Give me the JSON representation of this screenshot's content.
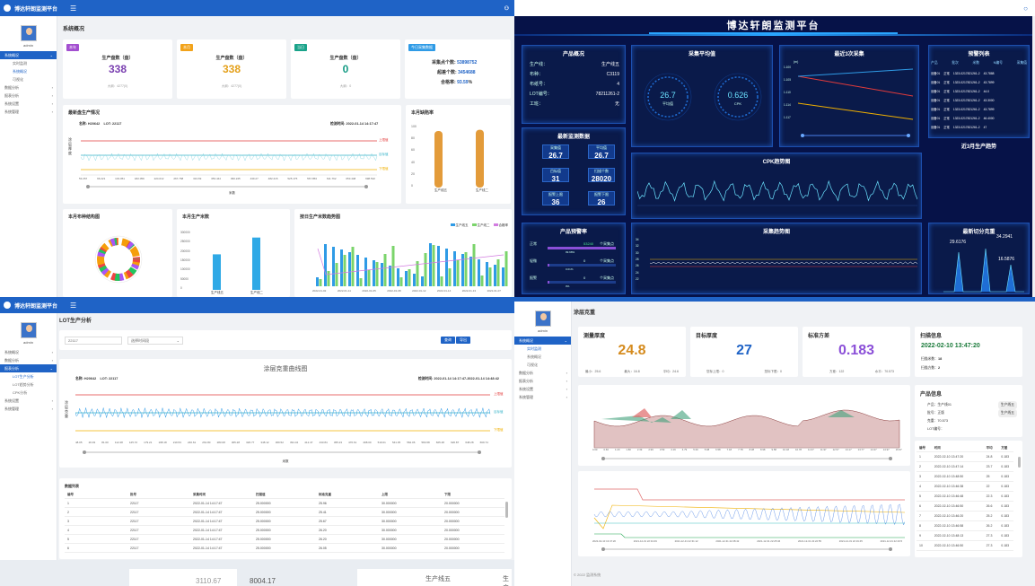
{
  "app_title": "博达轩朗监测平台",
  "q1": {
    "user": "admin",
    "menu": [
      {
        "label": "系统概况",
        "active": true
      },
      {
        "label": "数据分析"
      },
      {
        "label": "报表分析"
      },
      {
        "label": "系统设置"
      },
      {
        "label": "系统管理"
      }
    ],
    "submenu": [
      {
        "label": "实时监测"
      },
      {
        "label": "系统概况",
        "active": true
      },
      {
        "label": "可视化"
      }
    ],
    "page_title": "系统概况",
    "stats": [
      {
        "tag": "本年",
        "tag_color": "#a34fd0",
        "label": "生产盘数（盘）",
        "value": "338",
        "value_color": "#7a3fb0",
        "sub": "大纲：4277(0)"
      },
      {
        "tag": "本月",
        "tag_color": "#f2a31b",
        "label": "生产盘数（盘）",
        "value": "338",
        "value_color": "#e4a01a",
        "sub": "大纲：4277(0)"
      },
      {
        "tag": "当日",
        "tag_color": "#1aa38a",
        "label": "生产盘数（盘）",
        "value": "0",
        "value_color": "#159b84",
        "sub": "大纲：0"
      }
    ],
    "today": {
      "tag": "今日采集数据",
      "l1": "采集点个数:",
      "v1": "53898752",
      "l2": "超差个数:",
      "v2": "3454688",
      "l3": "合格率:",
      "v3": "93.59",
      "unit": "%"
    },
    "latest": {
      "title": "最新盘生产情况",
      "name_label": "名称:",
      "name": "H20642",
      "lot_label": "LOT:",
      "lot": "22117",
      "time_label": "检测时间:",
      "time": "2022-01-14 14:17:47",
      "ylabel": "涂层厚度",
      "xlabel": "米数",
      "upper": "上限值",
      "target": "目标值",
      "lower": "下限值",
      "xticks": [
        "53.267",
        "66.221",
        "133.051",
        "182.059",
        "224.012",
        "267.768",
        "313.69",
        "353.444",
        "396.245",
        "439.27",
        "482.215",
        "525.175",
        "567.853",
        "611.762",
        "653.448",
        "698.532"
      ]
    },
    "rate": {
      "title": "本月缺陷率",
      "categories": [
        "生产线五",
        "生产线二"
      ],
      "values": [
        90,
        92
      ],
      "yticks": [
        "100",
        "80",
        "60",
        "40",
        "20",
        "0"
      ]
    },
    "pie": {
      "title": "本月布种结构图"
    },
    "month": {
      "title": "本月生产米数",
      "categories": [
        "生产线五",
        "生产线二"
      ],
      "values": [
        180000,
        265000
      ],
      "yticks": [
        "300000",
        "250000",
        "200000",
        "150000",
        "100000",
        "50000",
        "0"
      ]
    },
    "trend": {
      "title": "按日生产米数趋势图",
      "legend": [
        "生产线五",
        "生产线二",
        "合格率"
      ],
      "xticks": [
        "2022-01-02",
        "2022-01-11",
        "2022-01-05",
        "2022-01-08",
        "2022-01-12",
        "2022-01-14",
        "2022-01-13",
        "2022-01-07"
      ]
    }
  },
  "q2": {
    "title": "博达轩朗监测平台",
    "product": {
      "title": "产品概况",
      "rows": [
        [
          "生产线：",
          "生产线五"
        ],
        [
          "布种：",
          "C3119"
        ],
        [
          "布纸号：",
          "4"
        ],
        [
          "LOT编号：",
          "78211261-2"
        ],
        [
          "工班：",
          "无"
        ]
      ]
    },
    "avg": {
      "title": "采集平均值",
      "g1": "26.7",
      "g1l": "平均值",
      "g2": "0.626",
      "g2l": "CPK"
    },
    "last3": {
      "title": "最近3次采集",
      "unit": "(m)",
      "yticks": [
        "1.100",
        "1.105",
        "1.110",
        "1.114",
        "1.117"
      ]
    },
    "forecast": {
      "title": "预警列表",
      "headers": [
        "产品",
        "批次",
        "米数",
        "N编号",
        "采集值"
      ],
      "rows": [
        [
          "设备01",
          "正常",
          "1323-0217821261-2",
          "43.7888"
        ],
        [
          "设备01",
          "正常",
          "1323-0217821261-2",
          "43.7899"
        ],
        [
          "设备01",
          "正常",
          "1323-0217821261-2",
          "44.0"
        ],
        [
          "设备01",
          "正常",
          "1323-0217821261-2",
          "43.3000"
        ],
        [
          "设备01",
          "正常",
          "1323-0217821261-2",
          "43.7899"
        ],
        [
          "设备01",
          "正常",
          "1323-0217821261-2",
          "46.4000"
        ],
        [
          "设备01",
          "正常",
          "1323-0217821261-2",
          "47"
        ]
      ]
    },
    "recent": {
      "title": "最新监测数据",
      "cells": [
        [
          "采集值",
          "26.7"
        ],
        [
          "平均值",
          "26.7"
        ],
        [
          "目标值",
          "31"
        ],
        [
          "扫描个数",
          "28020"
        ],
        [
          "报警上限",
          "36"
        ],
        [
          "报警下限",
          "26"
        ]
      ]
    },
    "cpk": {
      "title": "CPK趋势图"
    },
    "trend3": {
      "title": "近3月生产趋势"
    },
    "warn": {
      "title": "产品预警率",
      "rows": [
        [
          "正常",
          "53240",
          "个采集点",
          "99.98%"
        ],
        [
          "轻微",
          "0",
          "个采集点",
          "0.01%"
        ],
        [
          "报警",
          "0",
          "个采集点",
          "0%"
        ]
      ]
    },
    "scan": {
      "title": "采集趋势图",
      "yticks": [
        "34",
        "32",
        "30",
        "28",
        "26",
        "24",
        "22"
      ]
    },
    "cut": {
      "title": "最新切分克重",
      "v1": "29.6176",
      "v2": "34.2941",
      "v3": "16.5876"
    }
  },
  "q3": {
    "user": "admin",
    "menu": [
      {
        "label": "系统概况"
      },
      {
        "label": "数据分析"
      },
      {
        "label": "报表分析",
        "active": true
      },
      {
        "label": "系统设置"
      },
      {
        "label": "系统管理"
      }
    ],
    "submenu": [
      {
        "label": "LOT生产分析",
        "active": true
      },
      {
        "label": "LOT趋势分析"
      },
      {
        "label": "CPK分析"
      }
    ],
    "page_title": "LOT生产分析",
    "search_value": "22117",
    "select_value": "选择时间段",
    "search_btn": "查询",
    "export_btn": "导出",
    "chart": {
      "title": "涂层克重曲线图",
      "name_label": "名称:",
      "name": "H20642",
      "lot_label": "LOT:",
      "lot": "22117",
      "time_label": "检测时间:",
      "time": "2022-01-14 14:17:47-2022-01-14 14:48:42",
      "ylabel": "涂层克重",
      "xlabel": "米数",
      "upper": "上限值",
      "target": "目标值",
      "lower": "下限值",
      "xticks": [
        "48.05",
        "26.93",
        "81.00",
        "112.28",
        "125.72",
        "179.21",
        "198.18",
        "219.53",
        "240.61",
        "261.80",
        "283.08",
        "305.28",
        "326.77",
        "348.12",
        "369.52",
        "391.04",
        "412.47",
        "433.84",
        "455.23",
        "476.61",
        "498.00",
        "519.01",
        "541.35",
        "562.06",
        "583.68",
        "605.48",
        "626.87",
        "648.28",
        "669.74"
      ]
    },
    "table": {
      "title": "数据列表",
      "headers": [
        "编号",
        "批号",
        "采集时间",
        "扫描值",
        "标准克重",
        "上限",
        "下限"
      ],
      "rows": [
        [
          "1",
          "22117",
          "2022-01-14 14:17:47",
          "25.000000",
          "25.96",
          "30.000000",
          "20.000000"
        ],
        [
          "2",
          "22117",
          "2022-01-14 14:17:47",
          "25.000000",
          "25.41",
          "30.000000",
          "20.000000"
        ],
        [
          "3",
          "22117",
          "2022-01-14 14:17:47",
          "25.000000",
          "25.67",
          "30.000000",
          "20.000000"
        ],
        [
          "4",
          "22117",
          "2022-01-14 14:17:47",
          "25.000000",
          "26.20",
          "30.000000",
          "20.000000"
        ],
        [
          "5",
          "22117",
          "2022-01-14 14:17:47",
          "25.000000",
          "26.20",
          "30.000000",
          "20.000000"
        ],
        [
          "6",
          "22117",
          "2022-01-14 14:17:47",
          "25.000000",
          "26.05",
          "30.000000",
          "20.000000"
        ]
      ]
    }
  },
  "q4": {
    "user": "admin",
    "menu": [
      {
        "label": "系统概况",
        "active": true
      },
      {
        "label": "数据分析"
      },
      {
        "label": "报表分析"
      },
      {
        "label": "系统设置"
      },
      {
        "label": "系统管理"
      }
    ],
    "submenu": [
      {
        "label": "实时监测",
        "active": true
      },
      {
        "label": "系统概况"
      },
      {
        "label": "可视化"
      }
    ],
    "page_title": "涂层克重",
    "k1": {
      "title": "测量厚度",
      "value": "24.8",
      "color": "#d58b1e",
      "sub": [
        "最小：25.6",
        "最大：16.8",
        "平均：24.6"
      ]
    },
    "k2": {
      "title": "目标厚度",
      "value": "27",
      "color": "#1f63c6",
      "sub": [
        "您标上限：0",
        "您标下限：0"
      ]
    },
    "k3": {
      "title": "标准方差",
      "value": "0.183",
      "color": "#8b4fd8",
      "sub": [
        "方差：122",
        "水平：70.573"
      ]
    },
    "scan": {
      "title": "扫描信息",
      "time": "2022-02-10 13:47:20",
      "l1": "扫描米数：",
      "v1": "18",
      "l2": "扫描方数：",
      "v2": "2"
    },
    "info": {
      "title": "产品信息",
      "rows": [
        [
          "产品：生产线01",
          "生产线五"
        ],
        [
          "批号：正版",
          "生产线五"
        ],
        [
          "克重：70.573",
          ""
        ],
        [
          "LOT编号：",
          ""
        ]
      ]
    },
    "list": {
      "headers": [
        "编号",
        "时间",
        "平均",
        "方差"
      ],
      "rows": [
        [
          "1",
          "2022-02-10 13:47:20",
          "24.8",
          "0.183"
        ],
        [
          "2",
          "2022-02-10 13:47:14",
          "23.7",
          "0.183"
        ],
        [
          "3",
          "2022-02-10 13:48:50",
          "25",
          "0.183"
        ],
        [
          "4",
          "2022-02-10 13:46:38",
          "22",
          "0.183"
        ],
        [
          "5",
          "2022-02-10 13:46:48",
          "22.3",
          "0.183"
        ],
        [
          "6",
          "2022-02-10 13:46:50",
          "26.6",
          "0.183"
        ],
        [
          "7",
          "2022-02-10 13:46:20",
          "25.2",
          "0.183"
        ],
        [
          "8",
          "2022-02-10 13:46:58",
          "26.2",
          "0.183"
        ],
        [
          "9",
          "2022-02-10 13:48:13",
          "27.3",
          "0.183"
        ],
        [
          "10",
          "2022-02-10 13:46:50",
          "27.3",
          "0.183"
        ]
      ]
    },
    "area_xticks": [
      "0.00",
      "0.60",
      "1.20",
      "1.80",
      "2.39",
      "2.99",
      "3.59",
      "4.19",
      "4.79",
      "5.39",
      "5.98",
      "6.58",
      "7.18",
      "7.78",
      "8.38",
      "8.98",
      "9.58",
      "10.18",
      "10.78",
      "11.37",
      "11.97",
      "12.57",
      "13.17",
      "13.77",
      "14.37",
      "14.97",
      "15.57"
    ],
    "line_xticks": [
      "2022-02-10 13:47:20",
      "2021-12-31 22:34:49",
      "2021-12-31 22:31:12",
      "2021-12-31 22:28:42",
      "2021-12-31 22:25:46",
      "2021-12-31 22:22:55",
      "2021-12-31 22:19:45",
      "2021-12-31 22:16:5"
    ],
    "footer": "© 2022 监测系统"
  },
  "bottom": {
    "t1": "3110.67",
    "t2": "8004.17",
    "t3": "生产线五",
    "t4": "生产线"
  }
}
